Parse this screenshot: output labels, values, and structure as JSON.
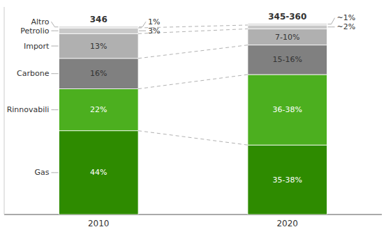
{
  "chart_data": {
    "type": "bar",
    "stacked": true,
    "data_labels": true,
    "categories": [
      "2010",
      "2020"
    ],
    "series": [
      {
        "name": "Gas",
        "color": "#2e8b00",
        "values": [
          44,
          36.5
        ],
        "value_labels": [
          "44%",
          "35-38%"
        ]
      },
      {
        "name": "Rinnovabili",
        "color": "#4caf1f",
        "values": [
          22,
          37
        ],
        "value_labels": [
          "22%",
          "36-38%"
        ]
      },
      {
        "name": "Carbone",
        "color": "#808080",
        "values": [
          16,
          15.5
        ],
        "value_labels": [
          "16%",
          "15-16%"
        ]
      },
      {
        "name": "Import",
        "color": "#b0b0b0",
        "values": [
          13,
          8.5
        ],
        "value_labels": [
          "13%",
          "7-10%"
        ]
      },
      {
        "name": "Petrolio",
        "color": "#c8c8c8",
        "values": [
          3,
          2
        ],
        "value_labels": [
          "3%",
          "~2%"
        ]
      },
      {
        "name": "Altro",
        "color": "#e0e0e0",
        "values": [
          1,
          1
        ],
        "value_labels": [
          "1%",
          "~1%"
        ]
      }
    ],
    "annotations": [
      "346",
      "345-360"
    ],
    "ylim": [
      0,
      109
    ],
    "grid": false,
    "tick_labels": "x"
  }
}
